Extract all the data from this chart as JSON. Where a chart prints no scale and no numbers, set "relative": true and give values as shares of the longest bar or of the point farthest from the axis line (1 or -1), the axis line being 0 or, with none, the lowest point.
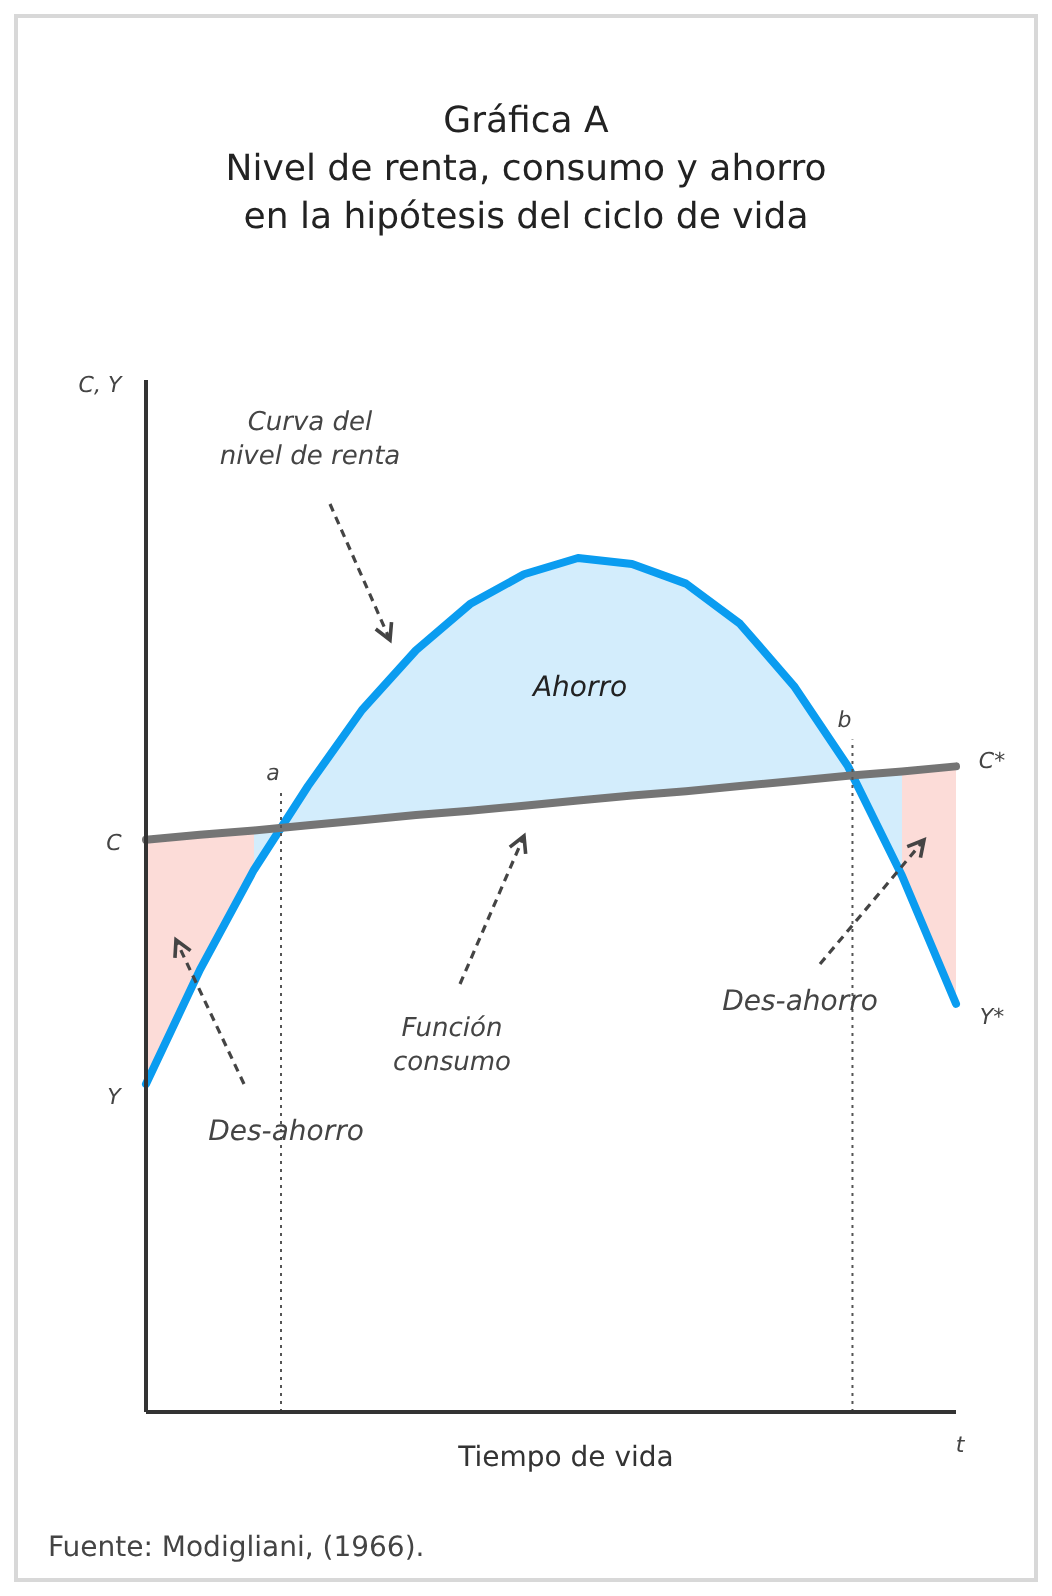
{
  "chart_data": {
    "type": "line",
    "title": "Gráfica A\nNivel de renta, consumo y ahorro\nen la hipótesis del ciclo de vida",
    "xlabel": "Tiempo de vida",
    "relative": true,
    "categories": [
      null,
      null,
      null,
      null,
      null,
      null,
      null,
      null,
      null,
      null,
      null,
      null,
      null,
      null,
      null,
      null
    ],
    "series": [
      {
        "name": "Curva del\nnivel de renta",
        "color": "#0a9cf0",
        "values": [
          0.384,
          0.518,
          0.635,
          0.733,
          0.822,
          0.892,
          0.946,
          0.981,
          1.0,
          0.993,
          0.97,
          0.923,
          0.85,
          0.756,
          0.628,
          0.478
        ],
        "lower": [
          null,
          null,
          0.681,
          0.687,
          0.693,
          0.699,
          0.704,
          0.71,
          0.716,
          0.722,
          0.727,
          0.733,
          0.739,
          0.745,
          0.75,
          null
        ],
        "upper": [
          null,
          null,
          0.635,
          0.733,
          0.822,
          0.892,
          0.946,
          0.981,
          1.0,
          0.993,
          0.97,
          0.923,
          0.85,
          0.756,
          0.628,
          null
        ]
      },
      {
        "name": "Función\nconsumo",
        "color": "#757575",
        "values": [
          0.67,
          0.676,
          0.681,
          0.687,
          0.693,
          0.699,
          0.704,
          0.71,
          0.716,
          0.722,
          0.727,
          0.733,
          0.739,
          0.745,
          0.75,
          0.756
        ],
        "lower": [
          0.384,
          0.518,
          0.635,
          null,
          null,
          null,
          null,
          null,
          null,
          null,
          null,
          null,
          null,
          null,
          0.628,
          0.478
        ],
        "upper": [
          0.67,
          0.676,
          0.681,
          null,
          null,
          null,
          null,
          null,
          null,
          null,
          null,
          null,
          null,
          null,
          0.75,
          0.756
        ]
      }
    ],
    "annotations": [
      "Ahorro",
      "Des-ahorro",
      "Des-ahorro",
      "C",
      "Y",
      "C*",
      "Y*",
      "t",
      "Fuente: Modigliani, (1966).",
      "C, Y",
      "a",
      "b"
    ]
  }
}
